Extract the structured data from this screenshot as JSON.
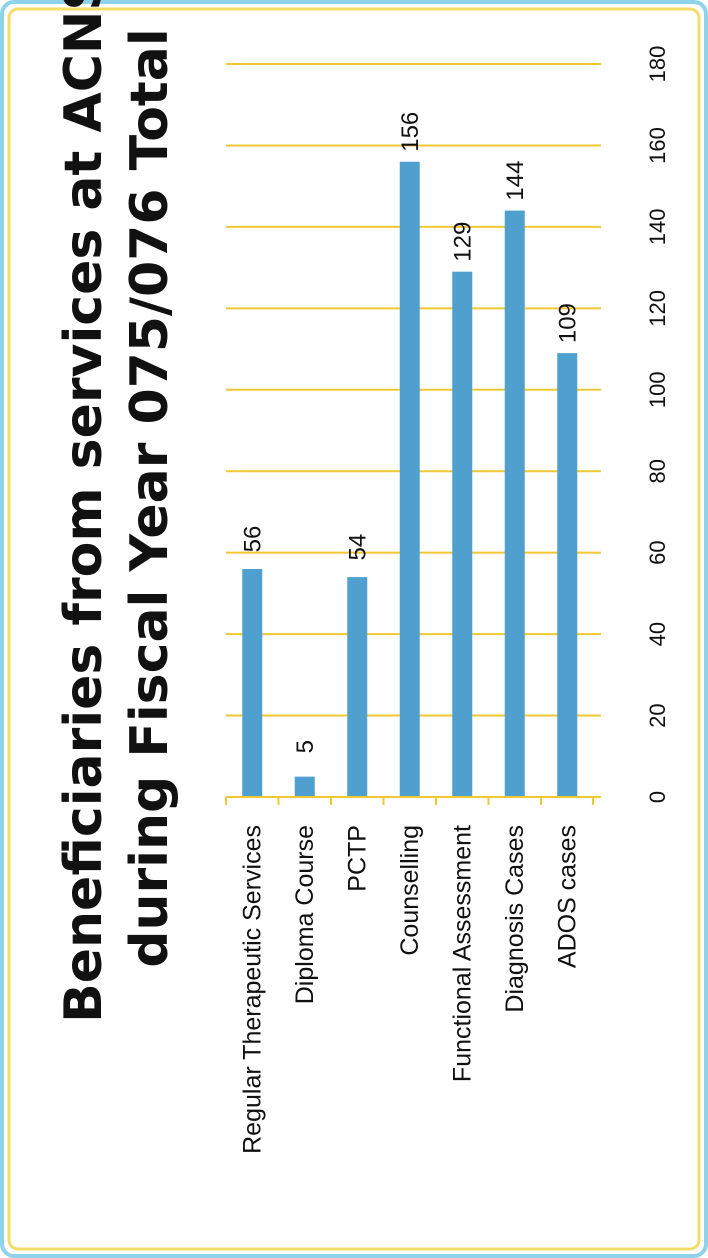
{
  "colors": {
    "frame_outer": "#8fd3ea",
    "frame_inner": "#f4dc68",
    "grid": "#f0c833",
    "bar": "#4fa0cf"
  },
  "chart_data": {
    "type": "bar",
    "orientation": "vertical, whole figure rotated 90 degrees counter-clockwise",
    "title_lines": [
      "Beneficiaries from services at ACNS",
      "during Fiscal Year 075/076   Total"
    ],
    "categories": [
      "Regular Therapeutic Services",
      "Diploma Course",
      "PCTP",
      "Counselling",
      "Functional Assessment",
      "Diagnosis Cases",
      "ADOS cases"
    ],
    "values": [
      56,
      5,
      54,
      156,
      129,
      144,
      109
    ],
    "value_labels": [
      "56",
      "5",
      "54",
      "156",
      "129",
      "144",
      "109"
    ],
    "ylim": [
      0,
      180
    ],
    "yticks": [
      0,
      20,
      40,
      60,
      80,
      100,
      120,
      140,
      160,
      180
    ],
    "grid": true,
    "legend": "none"
  }
}
